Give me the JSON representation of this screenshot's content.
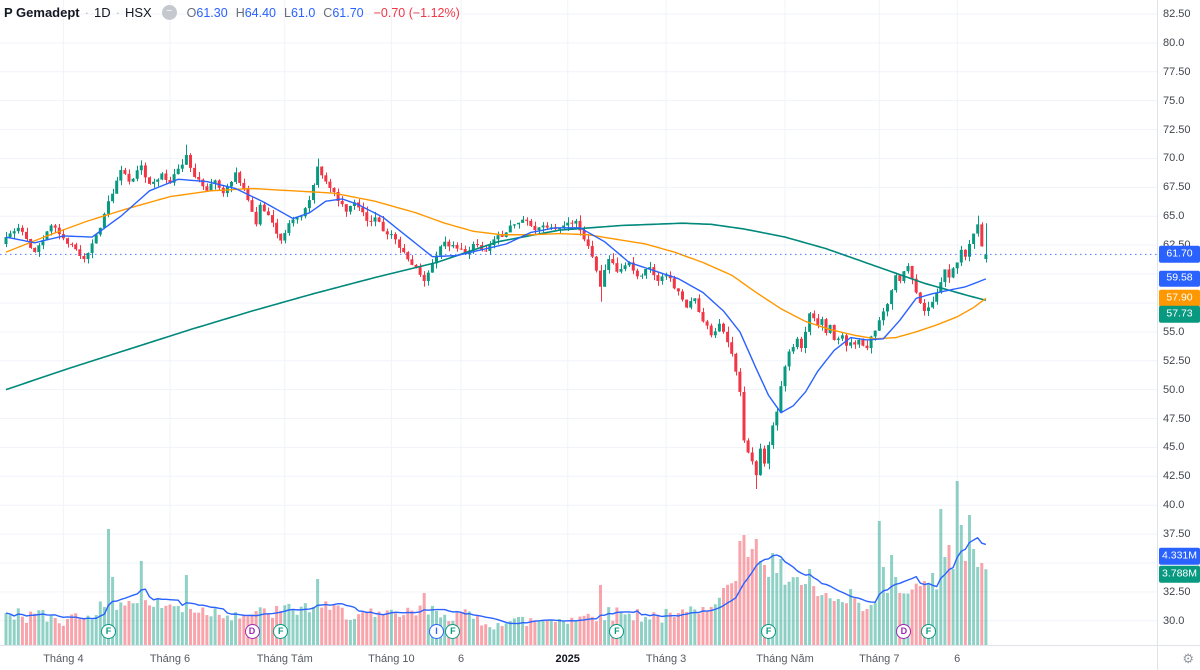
{
  "header": {
    "symbol_title": "P Gemadept",
    "separator": "·",
    "interval": "1D",
    "exchange": "HSX",
    "legend_button_glyph": "−",
    "readout": {
      "o_label": "O",
      "o": "61.30",
      "h_label": "H",
      "h": "64.40",
      "l_label": "L",
      "l": "61.0",
      "c_label": "C",
      "c": "61.70",
      "change": "−0.70 (−1.12%)"
    }
  },
  "colors": {
    "up": "#089981",
    "down": "#F23645",
    "up_vol": "rgba(8,153,129,0.45)",
    "down_vol": "rgba(242,54,69,0.45)",
    "ma20": "#2962FF",
    "ma50": "#FF9800",
    "ma200": "#00897B",
    "volume_ma": "#2962FF",
    "last_price_line": "#2962FF",
    "grid": "#f0f3fa"
  },
  "price_axis": {
    "ticks": [
      {
        "label": "82.50",
        "value": 82.5
      },
      {
        "label": "80.0",
        "value": 80.0
      },
      {
        "label": "77.50",
        "value": 77.5
      },
      {
        "label": "75.0",
        "value": 75.0
      },
      {
        "label": "72.50",
        "value": 72.5
      },
      {
        "label": "70.0",
        "value": 70.0
      },
      {
        "label": "67.50",
        "value": 67.5
      },
      {
        "label": "65.0",
        "value": 65.0
      },
      {
        "label": "62.50",
        "value": 62.5
      },
      {
        "label": "55.0",
        "value": 55.0
      },
      {
        "label": "52.50",
        "value": 52.5
      },
      {
        "label": "50.0",
        "value": 50.0
      },
      {
        "label": "47.50",
        "value": 47.5
      },
      {
        "label": "45.0",
        "value": 45.0
      },
      {
        "label": "42.50",
        "value": 42.5
      },
      {
        "label": "40.0",
        "value": 40.0
      },
      {
        "label": "37.50",
        "value": 37.5
      },
      {
        "label": "32.50",
        "value": 32.5
      },
      {
        "label": "30.0",
        "value": 30.0
      }
    ],
    "badges": [
      {
        "label": "61.70",
        "value": 61.7,
        "bg": "#2962FF",
        "dy": 0
      },
      {
        "label": "59.58",
        "value": 59.58,
        "bg": "#2962FF",
        "dy": 0
      },
      {
        "label": "57.90",
        "value": 57.9,
        "bg": "#FF9800",
        "dy": 0
      },
      {
        "label": "57.73",
        "value": 57.73,
        "bg": "#089981",
        "dy": 14
      }
    ],
    "volume_badges": [
      {
        "label": "4.331M",
        "value": 4.331,
        "bg": "#2962FF",
        "dy": -2
      },
      {
        "label": "3.788M",
        "value": 3.788,
        "bg": "#089981",
        "dy": 5
      }
    ]
  },
  "time_axis": {
    "labels": [
      {
        "text": "Tháng 4",
        "i": 14
      },
      {
        "text": "Tháng 6",
        "i": 40
      },
      {
        "text": "Tháng Tám",
        "i": 68
      },
      {
        "text": "Tháng 10",
        "i": 94
      },
      {
        "text": "6",
        "i": 111
      },
      {
        "text": "2025",
        "i": 137,
        "strong": true
      },
      {
        "text": "Tháng 3",
        "i": 161
      },
      {
        "text": "Tháng Năm",
        "i": 190
      },
      {
        "text": "Tháng 7",
        "i": 213
      },
      {
        "text": "6",
        "i": 232
      }
    ],
    "gear_glyph": "⚙"
  },
  "events": [
    {
      "i": 25,
      "letter": "F",
      "color": "#089981"
    },
    {
      "i": 60,
      "letter": "D",
      "color": "#9C27B0"
    },
    {
      "i": 67,
      "letter": "F",
      "color": "#089981"
    },
    {
      "i": 105,
      "letter": "I",
      "color": "#2962FF"
    },
    {
      "i": 109,
      "letter": "F",
      "color": "#089981"
    },
    {
      "i": 149,
      "letter": "F",
      "color": "#089981"
    },
    {
      "i": 186,
      "letter": "F",
      "color": "#089981"
    },
    {
      "i": 219,
      "letter": "D",
      "color": "#9C27B0"
    },
    {
      "i": 225,
      "letter": "F",
      "color": "#089981"
    }
  ],
  "chart_data": {
    "type": "candlestick",
    "title": "Gemadept daily candlestick with MA20/MA50/MA200 and volume",
    "interval": "1D",
    "exchange": "HSX",
    "ylim": [
      30.0,
      82.5
    ],
    "grid": true,
    "num_bars": 240,
    "first_open": 62.6,
    "last_bar": {
      "o": 61.3,
      "h": 64.4,
      "l": 61.0,
      "c": 61.7,
      "change": -0.7,
      "change_pct": -1.12
    },
    "last_close_line": 61.7,
    "close_anchors": [
      [
        0,
        63.2
      ],
      [
        3,
        64.0
      ],
      [
        7,
        61.9
      ],
      [
        11,
        64.2
      ],
      [
        14,
        63.1
      ],
      [
        19,
        61.3
      ],
      [
        23,
        64.0
      ],
      [
        25,
        66.3
      ],
      [
        28,
        69.0
      ],
      [
        30,
        68.0
      ],
      [
        33,
        69.4
      ],
      [
        35,
        67.8
      ],
      [
        38,
        68.7
      ],
      [
        40,
        67.9
      ],
      [
        44,
        70.3
      ],
      [
        46,
        68.4
      ],
      [
        49,
        67.2
      ],
      [
        51,
        68.1
      ],
      [
        53,
        67.0
      ],
      [
        56,
        68.8
      ],
      [
        58,
        67.4
      ],
      [
        61,
        64.3
      ],
      [
        62,
        66.0
      ],
      [
        64,
        65.1
      ],
      [
        67,
        62.9
      ],
      [
        69,
        64.4
      ],
      [
        72,
        65.0
      ],
      [
        74,
        66.4
      ],
      [
        76,
        69.3
      ],
      [
        78,
        68.0
      ],
      [
        80,
        67.1
      ],
      [
        83,
        65.4
      ],
      [
        85,
        66.2
      ],
      [
        88,
        64.6
      ],
      [
        90,
        64.9
      ],
      [
        92,
        63.7
      ],
      [
        95,
        63.0
      ],
      [
        97,
        61.9
      ],
      [
        100,
        60.6
      ],
      [
        102,
        59.4
      ],
      [
        105,
        61.6
      ],
      [
        107,
        62.8
      ],
      [
        110,
        62.2
      ],
      [
        112,
        61.7
      ],
      [
        114,
        62.6
      ],
      [
        117,
        62.0
      ],
      [
        119,
        63.0
      ],
      [
        122,
        63.6
      ],
      [
        124,
        64.3
      ],
      [
        127,
        64.6
      ],
      [
        129,
        63.8
      ],
      [
        131,
        64.2
      ],
      [
        134,
        63.9
      ],
      [
        136,
        64.2
      ],
      [
        139,
        64.6
      ],
      [
        141,
        63.0
      ],
      [
        143,
        61.5
      ],
      [
        145,
        58.9
      ],
      [
        147,
        61.3
      ],
      [
        149,
        60.2
      ],
      [
        152,
        61.0
      ],
      [
        154,
        59.8
      ],
      [
        157,
        60.6
      ],
      [
        159,
        59.4
      ],
      [
        161,
        59.9
      ],
      [
        164,
        58.5
      ],
      [
        166,
        57.1
      ],
      [
        168,
        57.9
      ],
      [
        170,
        55.9
      ],
      [
        172,
        54.7
      ],
      [
        174,
        55.7
      ],
      [
        176,
        54.1
      ],
      [
        177,
        53.1
      ],
      [
        179,
        49.8
      ],
      [
        180,
        45.6
      ],
      [
        182,
        43.8
      ],
      [
        183,
        42.6
      ],
      [
        184,
        44.9
      ],
      [
        185,
        43.6
      ],
      [
        187,
        46.9
      ],
      [
        188,
        48.1
      ],
      [
        189,
        50.3
      ],
      [
        190,
        52.0
      ],
      [
        191,
        53.3
      ],
      [
        193,
        54.4
      ],
      [
        194,
        53.6
      ],
      [
        195,
        55.0
      ],
      [
        196,
        56.6
      ],
      [
        198,
        55.6
      ],
      [
        199,
        56.1
      ],
      [
        200,
        54.9
      ],
      [
        201,
        55.6
      ],
      [
        202,
        54.3
      ],
      [
        204,
        54.7
      ],
      [
        205,
        53.8
      ],
      [
        206,
        54.1
      ],
      [
        207,
        53.9
      ],
      [
        208,
        54.3
      ],
      [
        210,
        53.6
      ],
      [
        211,
        54.6
      ],
      [
        212,
        55.1
      ],
      [
        213,
        56.0
      ],
      [
        215,
        57.4
      ],
      [
        216,
        58.6
      ],
      [
        217,
        59.9
      ],
      [
        218,
        59.4
      ],
      [
        220,
        60.7
      ],
      [
        221,
        59.6
      ],
      [
        222,
        58.4
      ],
      [
        223,
        57.5
      ],
      [
        224,
        56.8
      ],
      [
        226,
        57.6
      ],
      [
        227,
        58.4
      ],
      [
        228,
        59.3
      ],
      [
        229,
        60.4
      ],
      [
        230,
        59.7
      ],
      [
        232,
        61.0
      ],
      [
        233,
        62.1
      ],
      [
        234,
        61.5
      ],
      [
        235,
        62.6
      ],
      [
        236,
        63.5
      ],
      [
        237,
        64.3
      ],
      [
        238,
        62.4
      ],
      [
        239,
        61.7
      ]
    ],
    "high_overrides": {
      "44": 71.2,
      "76": 70.0,
      "237": 65.05
    },
    "low_overrides": {
      "145": 57.6,
      "183": 41.4
    },
    "ma20_last": 59.58,
    "ma50_last": 57.9,
    "ma200_last": 57.73,
    "volume_ma_last_label": "4.331M",
    "last_volume_label": "3.788M",
    "ma20_anchors": [
      [
        0,
        63.2
      ],
      [
        7,
        62.7
      ],
      [
        14,
        63.3
      ],
      [
        21,
        63.2
      ],
      [
        28,
        65.0
      ],
      [
        35,
        67.2
      ],
      [
        42,
        68.2
      ],
      [
        49,
        68.0
      ],
      [
        56,
        67.4
      ],
      [
        63,
        66.2
      ],
      [
        70,
        64.8
      ],
      [
        74,
        65.3
      ],
      [
        78,
        66.3
      ],
      [
        82,
        66.5
      ],
      [
        86,
        66.0
      ],
      [
        92,
        64.9
      ],
      [
        98,
        63.2
      ],
      [
        104,
        61.5
      ],
      [
        110,
        61.6
      ],
      [
        116,
        62.1
      ],
      [
        122,
        62.6
      ],
      [
        128,
        63.6
      ],
      [
        134,
        64.0
      ],
      [
        140,
        64.0
      ],
      [
        146,
        62.8
      ],
      [
        152,
        61.0
      ],
      [
        158,
        60.3
      ],
      [
        164,
        59.6
      ],
      [
        170,
        58.4
      ],
      [
        175,
        56.8
      ],
      [
        179,
        55.0
      ],
      [
        183,
        51.8
      ],
      [
        186,
        49.5
      ],
      [
        189,
        48.0
      ],
      [
        192,
        48.6
      ],
      [
        195,
        49.8
      ],
      [
        198,
        51.6
      ],
      [
        202,
        53.4
      ],
      [
        206,
        54.5
      ],
      [
        210,
        54.3
      ],
      [
        214,
        54.4
      ],
      [
        218,
        56.0
      ],
      [
        222,
        57.9
      ],
      [
        226,
        58.3
      ],
      [
        230,
        58.6
      ],
      [
        234,
        58.9
      ],
      [
        237,
        59.3
      ],
      [
        239,
        59.58
      ]
    ],
    "ma50_anchors": [
      [
        0,
        61.9
      ],
      [
        10,
        63.3
      ],
      [
        20,
        64.6
      ],
      [
        30,
        65.7
      ],
      [
        40,
        66.7
      ],
      [
        50,
        67.2
      ],
      [
        60,
        67.4
      ],
      [
        70,
        67.2
      ],
      [
        80,
        67.0
      ],
      [
        90,
        66.3
      ],
      [
        100,
        65.3
      ],
      [
        107,
        64.4
      ],
      [
        114,
        63.7
      ],
      [
        121,
        63.4
      ],
      [
        128,
        63.4
      ],
      [
        135,
        63.5
      ],
      [
        142,
        63.4
      ],
      [
        149,
        63.0
      ],
      [
        156,
        62.6
      ],
      [
        163,
        61.9
      ],
      [
        170,
        61.0
      ],
      [
        177,
        59.9
      ],
      [
        183,
        58.4
      ],
      [
        189,
        57.0
      ],
      [
        195,
        55.9
      ],
      [
        201,
        55.2
      ],
      [
        207,
        54.7
      ],
      [
        212,
        54.4
      ],
      [
        217,
        54.5
      ],
      [
        222,
        55.0
      ],
      [
        227,
        55.6
      ],
      [
        232,
        56.3
      ],
      [
        236,
        57.1
      ],
      [
        239,
        57.9
      ]
    ],
    "ma200_anchors": [
      [
        0,
        50.0
      ],
      [
        15,
        51.8
      ],
      [
        30,
        53.5
      ],
      [
        45,
        55.2
      ],
      [
        60,
        56.8
      ],
      [
        75,
        58.3
      ],
      [
        90,
        59.7
      ],
      [
        105,
        61.0
      ],
      [
        120,
        62.8
      ],
      [
        135,
        63.8
      ],
      [
        150,
        64.2
      ],
      [
        165,
        64.4
      ],
      [
        172,
        64.3
      ],
      [
        180,
        63.9
      ],
      [
        190,
        63.2
      ],
      [
        200,
        62.2
      ],
      [
        208,
        61.2
      ],
      [
        216,
        60.2
      ],
      [
        224,
        59.2
      ],
      [
        230,
        58.6
      ],
      [
        235,
        58.1
      ],
      [
        239,
        57.73
      ]
    ],
    "volume_anchors": [
      [
        0,
        1.6
      ],
      [
        15,
        1.3
      ],
      [
        30,
        2.2
      ],
      [
        45,
        1.8
      ],
      [
        60,
        1.5
      ],
      [
        75,
        1.9
      ],
      [
        90,
        1.4
      ],
      [
        105,
        1.7
      ],
      [
        120,
        1.1
      ],
      [
        135,
        1.3
      ],
      [
        150,
        1.6
      ],
      [
        163,
        1.4
      ],
      [
        170,
        1.9
      ],
      [
        178,
        3.2
      ],
      [
        186,
        3.4
      ],
      [
        194,
        3.0
      ],
      [
        202,
        2.2
      ],
      [
        210,
        1.8
      ],
      [
        218,
        2.6
      ],
      [
        226,
        3.0
      ],
      [
        233,
        3.4
      ],
      [
        239,
        3.5
      ]
    ],
    "volume_spikes": [
      [
        25,
        5.8
      ],
      [
        26,
        3.4
      ],
      [
        33,
        4.2
      ],
      [
        44,
        3.5
      ],
      [
        76,
        3.3
      ],
      [
        102,
        2.6
      ],
      [
        145,
        3.0
      ],
      [
        179,
        5.2
      ],
      [
        180,
        5.5
      ],
      [
        181,
        4.4
      ],
      [
        182,
        4.8
      ],
      [
        183,
        5.3
      ],
      [
        184,
        4.2
      ],
      [
        185,
        4.0
      ],
      [
        187,
        4.6
      ],
      [
        188,
        3.6
      ],
      [
        189,
        4.3
      ],
      [
        196,
        3.8
      ],
      [
        206,
        2.8
      ],
      [
        213,
        6.2
      ],
      [
        214,
        3.9
      ],
      [
        216,
        4.5
      ],
      [
        217,
        3.4
      ],
      [
        226,
        3.6
      ],
      [
        228,
        6.8
      ],
      [
        229,
        4.4
      ],
      [
        230,
        5.0
      ],
      [
        231,
        3.8
      ],
      [
        232,
        8.2
      ],
      [
        233,
        6.0
      ],
      [
        234,
        4.2
      ],
      [
        235,
        6.5
      ],
      [
        236,
        4.8
      ],
      [
        237,
        3.9
      ],
      [
        238,
        4.1
      ],
      [
        239,
        3.788
      ]
    ]
  }
}
